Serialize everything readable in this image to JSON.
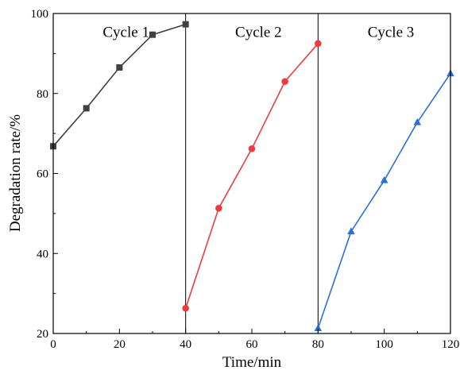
{
  "chart_data": {
    "type": "line",
    "xlabel": "Time/min",
    "ylabel": "Degradation rate/%",
    "xlim": [
      0,
      120
    ],
    "ylim": [
      20,
      100
    ],
    "xticks": [
      0,
      20,
      40,
      60,
      80,
      100,
      120
    ],
    "yticks": [
      20,
      40,
      60,
      80,
      100
    ],
    "grid": false,
    "dividers": [
      40,
      80
    ],
    "annotations": [
      {
        "text": "Cycle 1",
        "x": 22,
        "y": 95.5
      },
      {
        "text": "Cycle 2",
        "x": 62,
        "y": 95.5
      },
      {
        "text": "Cycle 3",
        "x": 102,
        "y": 95.5
      }
    ],
    "series": [
      {
        "color": "#404040",
        "marker": "square",
        "x": [
          0,
          10,
          20,
          30,
          40
        ],
        "y": [
          66.8,
          76.3,
          86.5,
          94.7,
          97.3
        ]
      },
      {
        "color": "#ee3b3b",
        "marker": "circle",
        "x": [
          40,
          50,
          60,
          70,
          80
        ],
        "y": [
          26.3,
          51.3,
          66.2,
          83.0,
          92.5
        ]
      },
      {
        "color": "#2a6fd6",
        "marker": "triangle",
        "x": [
          80,
          90,
          100,
          110,
          120
        ],
        "y": [
          21.3,
          45.5,
          58.3,
          72.8,
          85.0
        ]
      }
    ]
  }
}
